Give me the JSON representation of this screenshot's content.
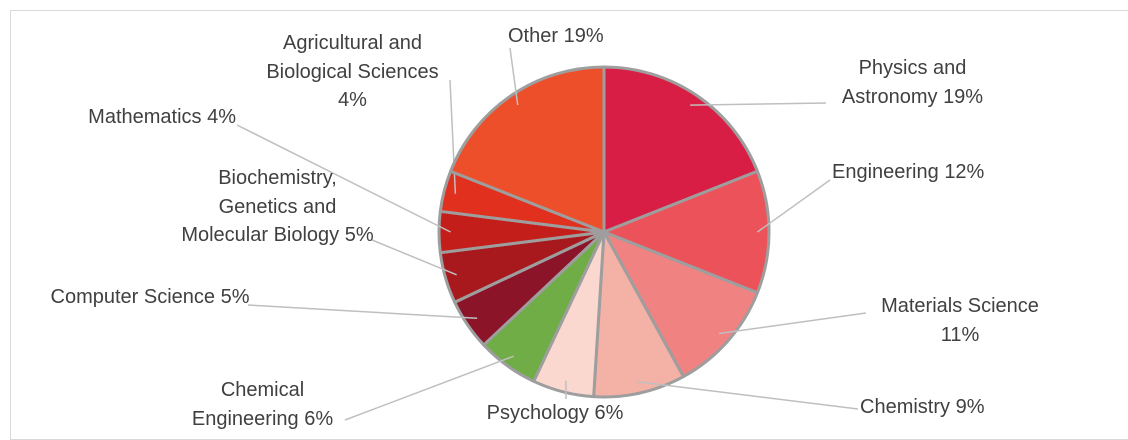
{
  "chart_data": {
    "type": "pie",
    "categories": [
      "Physics and Astronomy",
      "Engineering",
      "Materials Science",
      "Chemistry",
      "Psychology",
      "Chemical Engineering",
      "Computer Science",
      "Biochemistry, Genetics and Molecular Biology",
      "Mathematics",
      "Agricultural and Biological Sciences",
      "Other"
    ],
    "values": [
      19,
      12,
      11,
      9,
      6,
      6,
      5,
      5,
      4,
      4,
      19
    ],
    "value_labels": [
      "19%",
      "12%",
      "11%",
      "9%",
      "6%",
      "6%",
      "5%",
      "5%",
      "4%",
      "4%",
      "19%"
    ],
    "colors": [
      "#d81e45",
      "#ec525a",
      "#f08282",
      "#f4b1a6",
      "#fad8d0",
      "#70ad47",
      "#8b1428",
      "#a8191d",
      "#c41e1a",
      "#e2301f",
      "#ee4f2b"
    ]
  }
}
